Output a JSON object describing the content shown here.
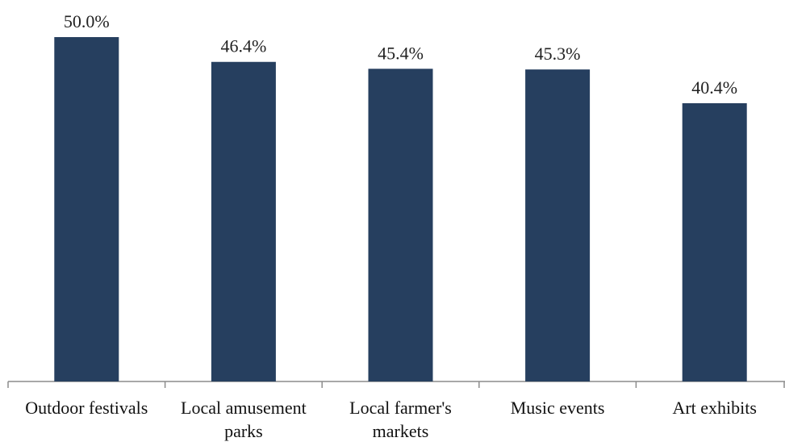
{
  "chart_data": {
    "type": "bar",
    "categories": [
      [
        "Outdoor festivals"
      ],
      [
        "Local amusement",
        "parks"
      ],
      [
        "Local farmer's",
        "markets"
      ],
      [
        "Music events"
      ],
      [
        "Art exhibits"
      ]
    ],
    "values": [
      50.0,
      46.4,
      45.4,
      45.3,
      40.4
    ],
    "data_labels": [
      "50.0%",
      "46.4%",
      "45.4%",
      "45.3%",
      "40.4%"
    ],
    "value_unit": "%",
    "title": "",
    "xlabel": "",
    "ylabel": "",
    "ylim": [
      0,
      50
    ],
    "y_axis_visible": false,
    "grid": false,
    "legend": "none",
    "colors": {
      "bar": "#263f5f",
      "axis": "#8c8c8c"
    }
  }
}
